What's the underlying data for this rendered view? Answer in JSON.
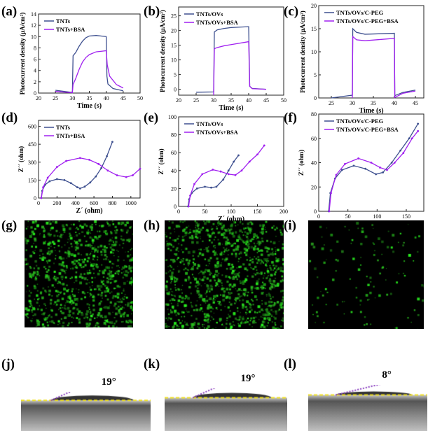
{
  "panel_labels": [
    "(a)",
    "(b)",
    "(c)",
    "(d)",
    "(e)",
    "(f)",
    "(g)",
    "(h)",
    "(i)",
    "(j)",
    "(k)",
    "(l)"
  ],
  "colors": {
    "blue": "#3d4f8f",
    "purple": "#a020f0",
    "fluor": "#2bd12b",
    "baseline": "#f0e020",
    "angle": "#8a3fc0"
  },
  "chart_data": [
    {
      "type": "line",
      "panel": "a",
      "xlabel": "Time (s)",
      "ylabel": "Photocurrent density (μA/cm²)",
      "xlim": [
        20,
        50
      ],
      "ylim": [
        0,
        14
      ],
      "xticks": [
        20,
        25,
        30,
        35,
        40,
        45,
        50
      ],
      "yticks": [
        0,
        2,
        4,
        6,
        8,
        10,
        12,
        14
      ],
      "markers": false,
      "series": [
        {
          "name": "TNTs",
          "color": "#3d4f8f",
          "points": [
            [
              25,
              0.5
            ],
            [
              30,
              0.1
            ],
            [
              30.2,
              6.6
            ],
            [
              31,
              7.2
            ],
            [
              32,
              8.3
            ],
            [
              33,
              9.2
            ],
            [
              34,
              9.8
            ],
            [
              35,
              10.1
            ],
            [
              37,
              10.2
            ],
            [
              40,
              10.0
            ],
            [
              40.2,
              3
            ],
            [
              40.5,
              1.6
            ],
            [
              42,
              0.8
            ],
            [
              45,
              0.4
            ]
          ]
        },
        {
          "name": "TNTs+BSA",
          "color": "#a020f0",
          "points": [
            [
              25,
              0.3
            ],
            [
              30,
              0.05
            ],
            [
              30.2,
              1.5
            ],
            [
              31,
              2.6
            ],
            [
              32,
              4.2
            ],
            [
              33,
              5.5
            ],
            [
              34,
              6.3
            ],
            [
              35,
              6.8
            ],
            [
              37,
              7.3
            ],
            [
              40,
              7.5
            ],
            [
              40.3,
              5
            ],
            [
              41,
              3
            ],
            [
              43,
              1.5
            ],
            [
              45,
              0.9
            ]
          ]
        }
      ]
    },
    {
      "type": "line",
      "panel": "b",
      "xlabel": "Time (s)",
      "ylabel": "Photocurrent density (μA/cm²)",
      "xlim": [
        20,
        50
      ],
      "ylim": [
        -2,
        28
      ],
      "xticks": [
        20,
        25,
        30,
        35,
        40,
        45,
        50
      ],
      "yticks": [
        0,
        5,
        10,
        15,
        20,
        25
      ],
      "markers": false,
      "series": [
        {
          "name": "TNTs/OVs",
          "color": "#3d4f8f",
          "points": [
            [
              25,
              -1
            ],
            [
              30,
              -0.9
            ],
            [
              30.2,
              19.5
            ],
            [
              31,
              20.2
            ],
            [
              33,
              20.7
            ],
            [
              35,
              21
            ],
            [
              40,
              21.3
            ],
            [
              40.3,
              1
            ],
            [
              41,
              0.3
            ],
            [
              45,
              0
            ]
          ]
        },
        {
          "name": "TNTs/OVs+BSA",
          "color": "#a020f0",
          "points": [
            [
              30,
              -2
            ],
            [
              30.2,
              13.8
            ],
            [
              31,
              14.2
            ],
            [
              33,
              14.8
            ],
            [
              35,
              15.2
            ],
            [
              40,
              16.2
            ],
            [
              40.3,
              1
            ],
            [
              41,
              0.2
            ],
            [
              45,
              0
            ]
          ]
        }
      ]
    },
    {
      "type": "line",
      "panel": "c",
      "xlabel": "Time (s)",
      "ylabel": "Photocurrent density (μA/cm²)",
      "xlim": [
        22,
        47
      ],
      "ylim": [
        0,
        20
      ],
      "xticks": [
        25,
        30,
        35,
        40,
        45
      ],
      "yticks": [
        0,
        5,
        10,
        15,
        20
      ],
      "markers": false,
      "series": [
        {
          "name": "TNTs/OVs/C-PEG",
          "color": "#3d4f8f",
          "points": [
            [
              25,
              0
            ],
            [
              30,
              0.6
            ],
            [
              30.1,
              15
            ],
            [
              31,
              14.2
            ],
            [
              33,
              13.8
            ],
            [
              40,
              14
            ],
            [
              40.1,
              0.5
            ],
            [
              42,
              1.2
            ],
            [
              45,
              1.7
            ]
          ]
        },
        {
          "name": "TNTs/OVs/C-PEG+BSA",
          "color": "#a020f0",
          "points": [
            [
              30,
              0
            ],
            [
              30.1,
              13.3
            ],
            [
              31,
              12.6
            ],
            [
              33,
              12.4
            ],
            [
              40,
              12.9
            ],
            [
              40.1,
              0.1
            ],
            [
              42,
              1
            ],
            [
              45,
              1.5
            ]
          ]
        }
      ]
    },
    {
      "type": "line",
      "panel": "d",
      "xlabel": "Z´ (ohm)",
      "ylabel": "Z´´ (ohm)",
      "xlim": [
        0,
        1100
      ],
      "ylim": [
        0,
        650
      ],
      "xticks": [
        0,
        200,
        400,
        600,
        800,
        1000
      ],
      "yticks": [
        0,
        150,
        300,
        450,
        600
      ],
      "markers": true,
      "series": [
        {
          "name": "TNTs",
          "color": "#3d4f8f",
          "points": [
            [
              30,
              0
            ],
            [
              40,
              60
            ],
            [
              70,
              110
            ],
            [
              120,
              140
            ],
            [
              200,
              158
            ],
            [
              280,
              150
            ],
            [
              350,
              125
            ],
            [
              420,
              90
            ],
            [
              450,
              80
            ],
            [
              500,
              95
            ],
            [
              560,
              130
            ],
            [
              620,
              180
            ],
            [
              680,
              250
            ],
            [
              740,
              350
            ],
            [
              800,
              470
            ]
          ]
        },
        {
          "name": "TNTs+BSA",
          "color": "#a020f0",
          "points": [
            [
              30,
              0
            ],
            [
              50,
              90
            ],
            [
              100,
              170
            ],
            [
              200,
              260
            ],
            [
              300,
              310
            ],
            [
              450,
              335
            ],
            [
              550,
              320
            ],
            [
              650,
              285
            ],
            [
              750,
              230
            ],
            [
              850,
              190
            ],
            [
              950,
              175
            ],
            [
              1020,
              190
            ],
            [
              1100,
              245
            ]
          ]
        }
      ]
    },
    {
      "type": "line",
      "panel": "e",
      "xlabel": "Z´ (ohm)",
      "ylabel": "Z´´ (ohm)",
      "xlim": [
        0,
        200
      ],
      "ylim": [
        0,
        100
      ],
      "xticks": [
        0,
        50,
        100,
        150,
        200
      ],
      "yticks": [
        0,
        20,
        40,
        60,
        80,
        100
      ],
      "markers": true,
      "series": [
        {
          "name": "TNTs/OVs",
          "color": "#3d4f8f",
          "points": [
            [
              18,
              0
            ],
            [
              20,
              8
            ],
            [
              25,
              15
            ],
            [
              35,
              20
            ],
            [
              50,
              22
            ],
            [
              62,
              21
            ],
            [
              72,
              22
            ],
            [
              85,
              30
            ],
            [
              95,
              40
            ],
            [
              105,
              50
            ],
            [
              114,
              57
            ]
          ]
        },
        {
          "name": "TNTs/OVs+BSA",
          "color": "#a020f0",
          "points": [
            [
              19,
              0
            ],
            [
              22,
              12
            ],
            [
              30,
              25
            ],
            [
              45,
              36
            ],
            [
              65,
              41
            ],
            [
              80,
              39
            ],
            [
              95,
              36
            ],
            [
              108,
              35
            ],
            [
              120,
              40
            ],
            [
              135,
              50
            ],
            [
              150,
              58
            ],
            [
              163,
              68
            ]
          ]
        }
      ]
    },
    {
      "type": "line",
      "panel": "f",
      "xlabel": "Z´ (ohm)",
      "ylabel": "Z´´ (ohm)",
      "xlim": [
        0,
        180
      ],
      "ylim": [
        0,
        80
      ],
      "xticks": [
        0,
        50,
        100,
        150
      ],
      "yticks": [
        0,
        20,
        40,
        60,
        80
      ],
      "markers": true,
      "series": [
        {
          "name": "TNTs/OVs/C-PEG",
          "color": "#3d4f8f",
          "points": [
            [
              17,
              0
            ],
            [
              20,
              15
            ],
            [
              28,
              27
            ],
            [
              40,
              34
            ],
            [
              60,
              37.5
            ],
            [
              80,
              35
            ],
            [
              98,
              30.5
            ],
            [
              110,
              32
            ],
            [
              125,
              40
            ],
            [
              140,
              50
            ],
            [
              155,
              60
            ],
            [
              170,
              72
            ]
          ]
        },
        {
          "name": "TNTs/OVs/C-PEG+BSA",
          "color": "#a020f0",
          "points": [
            [
              18,
              0
            ],
            [
              21,
              15
            ],
            [
              30,
              30
            ],
            [
              45,
              39
            ],
            [
              68,
              43.5
            ],
            [
              90,
              40
            ],
            [
              105,
              36
            ],
            [
              117,
              34
            ],
            [
              130,
              40
            ],
            [
              145,
              48
            ],
            [
              160,
              60
            ],
            [
              170,
              66
            ]
          ]
        }
      ]
    }
  ],
  "contact_angles": [
    "19°",
    "19°",
    "8°"
  ]
}
